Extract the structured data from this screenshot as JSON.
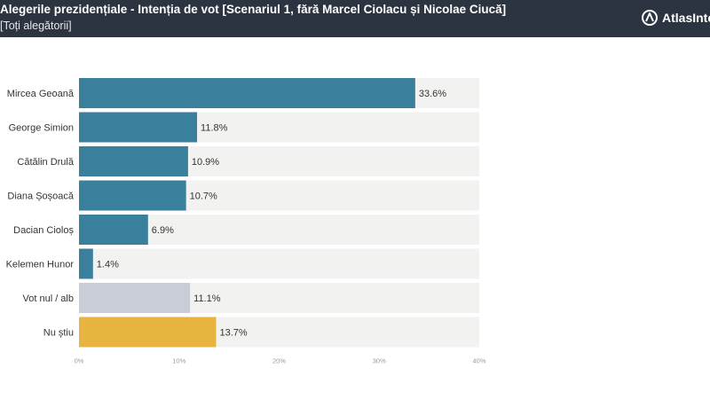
{
  "header": {
    "title": "Alegerile prezidențiale - Intenția de vot [Scenariul 1, fără Marcel Ciolacu și Nicolae Ciucă]",
    "subtitle": "[Toți alegătorii]",
    "logo_text": "AtlasInte",
    "logo_icon": "atlas-intel-logo-icon",
    "background_color": "#2b3440"
  },
  "chart_data": {
    "type": "bar",
    "orientation": "horizontal",
    "title": "Alegerile prezidențiale - Intenția de vot [Scenariul 1, fără Marcel Ciolacu și Nicolae Ciucă]",
    "subtitle": "[Toți alegătorii]",
    "categories": [
      "Mircea Geoană",
      "George Simion",
      "Cătălin Drulă",
      "Diana Șoșoacă",
      "Dacian Cioloș",
      "Kelemen Hunor",
      "Vot nul / alb",
      "Nu știu"
    ],
    "values": [
      33.6,
      11.8,
      10.9,
      10.7,
      6.9,
      1.4,
      11.1,
      13.7
    ],
    "value_labels": [
      "33.6%",
      "11.8%",
      "10.9%",
      "10.7%",
      "6.9%",
      "1.4%",
      "11.1%",
      "13.7%"
    ],
    "bar_colors": [
      "#3a7f9b",
      "#3a7f9b",
      "#3a7f9b",
      "#3a7f9b",
      "#3a7f9b",
      "#3a7f9b",
      "#c9ced6",
      "#e8b440"
    ],
    "track_color": "#f2f2f0",
    "xlim": [
      0,
      40
    ],
    "x_ticks": [
      0,
      10,
      20,
      30,
      40
    ],
    "x_tick_labels": [
      "0%",
      "10%",
      "20%",
      "30%",
      "40%"
    ],
    "xlabel": "",
    "ylabel": "",
    "grid": false,
    "legend": "none"
  }
}
